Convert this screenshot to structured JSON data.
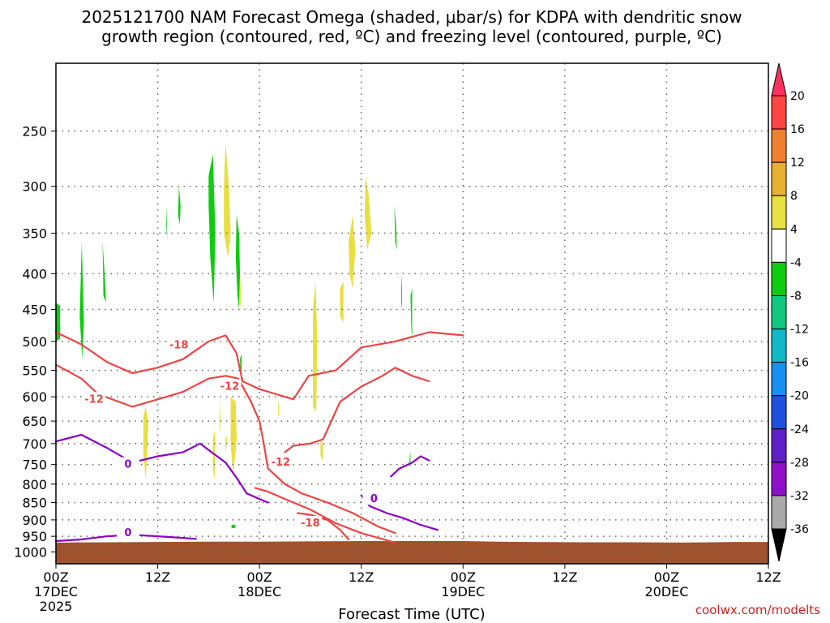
{
  "chart_data": {
    "type": "contour",
    "title_line1": "2025121700 NAM Forecast Omega (shaded, μbar/s) for KDPA with dendritic snow",
    "title_line2": "growth region (contoured, red, ºC) and freezing level (contoured, purple, ºC)",
    "xlabel": "Forecast Time (UTC)",
    "credit": "coolwx.com/modelts",
    "x_range_hours": [
      0,
      84
    ],
    "y_range_hpa": [
      200,
      1040
    ],
    "x_ticks": [
      {
        "h": 0,
        "l1": "00Z",
        "l2": "17DEC",
        "l3": "2025"
      },
      {
        "h": 12,
        "l1": "12Z",
        "l2": "",
        "l3": ""
      },
      {
        "h": 24,
        "l1": "00Z",
        "l2": "18DEC",
        "l3": ""
      },
      {
        "h": 36,
        "l1": "12Z",
        "l2": "",
        "l3": ""
      },
      {
        "h": 48,
        "l1": "00Z",
        "l2": "19DEC",
        "l3": ""
      },
      {
        "h": 60,
        "l1": "12Z",
        "l2": "",
        "l3": ""
      },
      {
        "h": 72,
        "l1": "00Z",
        "l2": "20DEC",
        "l3": ""
      },
      {
        "h": 84,
        "l1": "12Z",
        "l2": "",
        "l3": ""
      }
    ],
    "y_ticks": [
      {
        "p": 250,
        "label": "250"
      },
      {
        "p": 300,
        "label": "300"
      },
      {
        "p": 350,
        "label": "350"
      },
      {
        "p": 400,
        "label": "400"
      },
      {
        "p": 450,
        "label": "450"
      },
      {
        "p": 500,
        "label": "500"
      },
      {
        "p": 550,
        "label": "550"
      },
      {
        "p": 600,
        "label": "600"
      },
      {
        "p": 650,
        "label": "650"
      },
      {
        "p": 700,
        "label": "700"
      },
      {
        "p": 750,
        "label": "750"
      },
      {
        "p": 800,
        "label": "800"
      },
      {
        "p": 850,
        "label": "850"
      },
      {
        "p": 900,
        "label": "900"
      },
      {
        "p": 950,
        "label": "950"
      },
      {
        "p": 1000,
        "label": "1000"
      }
    ],
    "colorbar": {
      "labels": [
        "20",
        "16",
        "12",
        "8",
        "4",
        "-4",
        "-8",
        "-12",
        "-16",
        "-20",
        "-24",
        "-28",
        "-32",
        "-36"
      ],
      "colors": [
        "#ff3060",
        "#ff4444",
        "#f08030",
        "#e8b030",
        "#e8e040",
        "#ffffff",
        "#10cc10",
        "#10c880",
        "#10b8c8",
        "#1890f0",
        "#2050e0",
        "#6020c8",
        "#9010c8",
        "#aaaaaa",
        "#000000"
      ]
    },
    "terrain_color": "#a0522d",
    "terrain_top_hpa": [
      [
        0,
        970
      ],
      [
        6,
        969
      ],
      [
        12,
        968
      ],
      [
        18,
        967
      ],
      [
        24,
        967
      ],
      [
        30,
        966
      ],
      [
        36,
        965
      ],
      [
        42,
        965
      ],
      [
        48,
        965
      ],
      [
        52,
        967
      ],
      [
        56,
        968
      ],
      [
        62,
        969
      ],
      [
        68,
        969
      ],
      [
        74,
        970
      ],
      [
        80,
        968
      ],
      [
        84,
        968
      ]
    ],
    "omega_negative_color": "#10cc10",
    "omega_positive_color": "#e8e040",
    "omega_negative": [
      [
        [
          0,
          440
        ],
        [
          0.5,
          445
        ],
        [
          0.5,
          495
        ],
        [
          0,
          500
        ]
      ],
      [
        [
          2.8,
          460
        ],
        [
          3.05,
          360
        ],
        [
          3.3,
          470
        ],
        [
          3.1,
          530
        ]
      ],
      [
        [
          5.5,
          360
        ],
        [
          5.8,
          410
        ],
        [
          5.9,
          440
        ],
        [
          5.6,
          430
        ]
      ],
      [
        [
          13.0,
          320
        ],
        [
          13.15,
          360
        ],
        [
          13.0,
          340
        ]
      ],
      [
        [
          14.5,
          300
        ],
        [
          14.7,
          320
        ],
        [
          14.6,
          340
        ],
        [
          14.4,
          330
        ]
      ],
      [
        [
          18.0,
          290
        ],
        [
          18.5,
          270
        ],
        [
          18.8,
          350
        ],
        [
          18.6,
          440
        ],
        [
          18.2,
          380
        ],
        [
          18.0,
          320
        ]
      ],
      [
        [
          21.3,
          330
        ],
        [
          21.6,
          350
        ],
        [
          21.7,
          400
        ],
        [
          21.6,
          450
        ],
        [
          21.4,
          430
        ],
        [
          21.2,
          380
        ]
      ],
      [
        [
          21.7,
          530
        ],
        [
          21.9,
          520
        ],
        [
          21.9,
          570
        ],
        [
          21.8,
          570
        ]
      ],
      [
        [
          20.7,
          915
        ],
        [
          21.2,
          915
        ],
        [
          21.1,
          925
        ],
        [
          20.7,
          925
        ]
      ],
      [
        [
          39.9,
          320
        ],
        [
          40.1,
          340
        ],
        [
          40.2,
          370
        ],
        [
          40.0,
          360
        ]
      ],
      [
        [
          40.7,
          400
        ],
        [
          40.8,
          420
        ],
        [
          40.8,
          450
        ],
        [
          40.7,
          440
        ]
      ],
      [
        [
          41.8,
          430
        ],
        [
          42.0,
          420
        ],
        [
          42.0,
          500
        ],
        [
          41.9,
          480
        ]
      ],
      [
        [
          41.7,
          735
        ],
        [
          41.8,
          720
        ],
        [
          41.8,
          755
        ],
        [
          41.7,
          755
        ]
      ]
    ],
    "omega_positive": [
      [
        [
          10.3,
          640
        ],
        [
          10.6,
          620
        ],
        [
          10.9,
          660
        ],
        [
          10.6,
          790
        ],
        [
          10.3,
          720
        ]
      ],
      [
        [
          18.5,
          690
        ],
        [
          18.7,
          670
        ],
        [
          18.8,
          690
        ],
        [
          18.7,
          790
        ],
        [
          18.5,
          760
        ]
      ],
      [
        [
          19.8,
          300
        ],
        [
          20.0,
          260
        ],
        [
          20.4,
          300
        ],
        [
          20.6,
          350
        ],
        [
          20.3,
          380
        ],
        [
          19.8,
          350
        ]
      ],
      [
        [
          19.3,
          600
        ],
        [
          19.4,
          640
        ],
        [
          19.4,
          680
        ],
        [
          19.3,
          660
        ]
      ],
      [
        [
          20.0,
          680
        ],
        [
          20.2,
          690
        ],
        [
          20.0,
          720
        ]
      ],
      [
        [
          20.6,
          600
        ],
        [
          21.2,
          610
        ],
        [
          21.3,
          690
        ],
        [
          20.9,
          780
        ],
        [
          20.6,
          700
        ]
      ],
      [
        [
          21.7,
          400
        ],
        [
          21.8,
          420
        ],
        [
          21.8,
          450
        ],
        [
          21.7,
          440
        ]
      ],
      [
        [
          26.2,
          610
        ],
        [
          26.3,
          615
        ],
        [
          26.3,
          640
        ],
        [
          26.2,
          640
        ]
      ],
      [
        [
          30.3,
          450
        ],
        [
          30.6,
          410
        ],
        [
          30.8,
          490
        ],
        [
          30.7,
          630
        ],
        [
          30.3,
          620
        ]
      ],
      [
        [
          31.2,
          690
        ],
        [
          31.5,
          700
        ],
        [
          31.5,
          740
        ],
        [
          31.2,
          730
        ]
      ],
      [
        [
          33.5,
          420
        ],
        [
          33.9,
          410
        ],
        [
          33.9,
          470
        ],
        [
          33.5,
          460
        ]
      ],
      [
        [
          34.5,
          360
        ],
        [
          35.0,
          330
        ],
        [
          35.3,
          370
        ],
        [
          35.0,
          420
        ],
        [
          34.6,
          400
        ]
      ],
      [
        [
          36.5,
          290
        ],
        [
          36.9,
          310
        ],
        [
          37.2,
          350
        ],
        [
          36.7,
          370
        ],
        [
          36.4,
          330
        ]
      ]
    ],
    "contours": [
      {
        "name": "dgz-minus18",
        "color": "#ee4444",
        "label": "-18",
        "label_at": [
          14.5,
          506
        ],
        "points": [
          [
            0,
            485
          ],
          [
            3,
            505
          ],
          [
            6,
            535
          ],
          [
            9,
            555
          ],
          [
            12,
            545
          ],
          [
            15,
            530
          ],
          [
            18,
            500
          ],
          [
            20,
            490
          ],
          [
            21.3,
            520
          ],
          [
            22,
            570
          ],
          [
            24,
            585
          ],
          [
            26,
            595
          ],
          [
            28,
            605
          ],
          [
            29.8,
            560
          ],
          [
            33,
            550
          ],
          [
            36,
            510
          ],
          [
            40,
            500
          ],
          [
            44,
            485
          ],
          [
            48,
            490
          ]
        ]
      },
      {
        "name": "dgz-minus12",
        "color": "#ee4444",
        "label": "-12",
        "label_at": [
          4.5,
          605
        ],
        "points": [
          [
            0,
            540
          ],
          [
            3,
            565
          ],
          [
            5,
            595
          ],
          [
            9,
            620
          ],
          [
            12,
            605
          ],
          [
            15,
            590
          ],
          [
            18,
            565
          ],
          [
            20,
            560
          ],
          [
            21.5,
            565
          ],
          [
            23,
            610
          ],
          [
            24,
            650
          ],
          [
            24.5,
            700
          ],
          [
            25,
            760
          ],
          [
            27,
            800
          ],
          [
            29,
            825
          ],
          [
            32,
            850
          ],
          [
            35,
            880
          ],
          [
            38,
            920
          ],
          [
            40,
            940
          ]
        ]
      },
      {
        "name": "dgz-minus12-b",
        "color": "#ee4444",
        "label": "-12",
        "label_at": [
          20.5,
          580
        ],
        "points": [
          [
            23.5,
            810
          ],
          [
            25,
            820
          ],
          [
            27,
            840
          ],
          [
            30,
            870
          ],
          [
            33,
            910
          ],
          [
            36,
            940
          ],
          [
            40,
            970
          ]
        ]
      },
      {
        "name": "dgz-minus12-c",
        "color": "#ee4444",
        "label": "-12",
        "label_at": [
          26.5,
          745
        ],
        "points": [
          [
            27,
            720
          ],
          [
            28,
            705
          ],
          [
            30,
            700
          ],
          [
            31.5,
            690
          ],
          [
            33.5,
            610
          ],
          [
            36,
            580
          ],
          [
            38.5,
            560
          ],
          [
            40,
            545
          ],
          [
            42,
            560
          ],
          [
            44,
            570
          ]
        ]
      },
      {
        "name": "dgz-minus18-b",
        "color": "#ee4444",
        "label": "-18",
        "label_at": [
          30,
          910
        ],
        "points": [
          [
            28.5,
            880
          ],
          [
            30,
            885
          ],
          [
            32,
            900
          ],
          [
            33.5,
            930
          ],
          [
            34.5,
            960
          ]
        ]
      },
      {
        "name": "freezing-level-upper",
        "color": "#8b00c8",
        "label": "0",
        "label_at": [
          8.5,
          750
        ],
        "points": [
          [
            0,
            695
          ],
          [
            3,
            680
          ],
          [
            6,
            710
          ],
          [
            9,
            745
          ],
          [
            12,
            730
          ],
          [
            15,
            720
          ],
          [
            17,
            700
          ],
          [
            18,
            715
          ],
          [
            20,
            745
          ],
          [
            21.5,
            790
          ],
          [
            22.5,
            825
          ],
          [
            24,
            840
          ],
          [
            25,
            850
          ]
        ]
      },
      {
        "name": "freezing-level-lower",
        "color": "#8b00c8",
        "label": "0",
        "label_at": [
          8.5,
          940
        ],
        "points": [
          [
            0,
            965
          ],
          [
            3,
            960
          ],
          [
            6,
            950
          ],
          [
            9,
            945
          ],
          [
            12,
            950
          ],
          [
            15,
            955
          ],
          [
            16.5,
            958
          ]
        ]
      },
      {
        "name": "freezing-level-right",
        "color": "#8b00c8",
        "label": "0",
        "label_at": [
          37.5,
          840
        ],
        "points": [
          [
            36,
            830
          ],
          [
            37,
            860
          ],
          [
            39,
            880
          ],
          [
            41,
            895
          ],
          [
            43,
            915
          ],
          [
            45,
            930
          ]
        ]
      },
      {
        "name": "freezing-level-right-b",
        "color": "#8b00c8",
        "label": "",
        "label_at": null,
        "points": [
          [
            39.5,
            780
          ],
          [
            40.5,
            760
          ],
          [
            42,
            745
          ],
          [
            43,
            730
          ],
          [
            44,
            740
          ]
        ]
      }
    ]
  }
}
